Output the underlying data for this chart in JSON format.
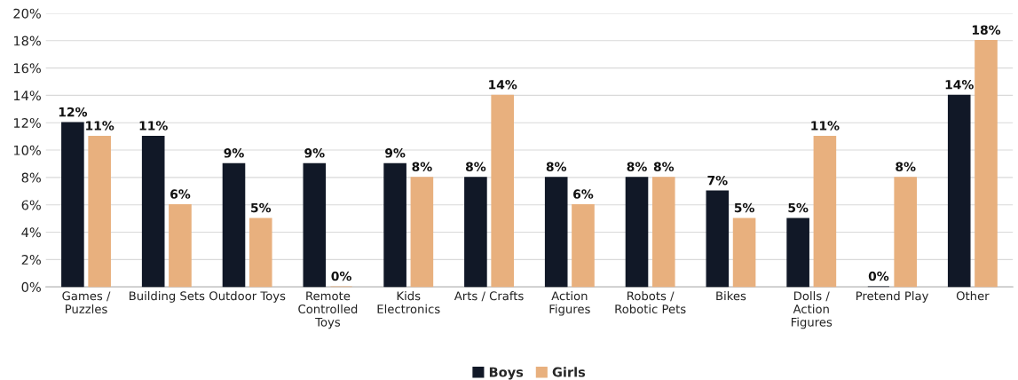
{
  "chart_data": {
    "type": "bar",
    "categories": [
      "Games / Puzzles",
      "Building Sets",
      "Outdoor Toys",
      "Remote Controlled Toys",
      "Kids Electronics",
      "Arts / Crafts",
      "Action Figures",
      "Robots / Robotic Pets",
      "Bikes",
      "Dolls / Action Figures",
      "Pretend Play",
      "Other"
    ],
    "series": [
      {
        "name": "Boys",
        "color": "#111827",
        "values": [
          12,
          11,
          9,
          9,
          9,
          8,
          8,
          8,
          7,
          5,
          0,
          14
        ],
        "value_labels": [
          "12%",
          "11%",
          "9%",
          "9%",
          "9%",
          "8%",
          "8%",
          "8%",
          "7%",
          "5%",
          "0%",
          "14%"
        ]
      },
      {
        "name": "Girls",
        "color": "#e8b07e",
        "values": [
          11,
          6,
          5,
          0,
          8,
          14,
          6,
          8,
          5,
          11,
          8,
          18
        ],
        "value_labels": [
          "11%",
          "6%",
          "5%",
          "0%",
          "8%",
          "14%",
          "6%",
          "8%",
          "5%",
          "11%",
          "8%",
          "18%"
        ]
      }
    ],
    "ylim": [
      0,
      20
    ],
    "yticks": [
      {
        "value": 0,
        "label": "0%"
      },
      {
        "value": 2,
        "label": "2%"
      },
      {
        "value": 4,
        "label": "4%"
      },
      {
        "value": 6,
        "label": "6%"
      },
      {
        "value": 8,
        "label": "8%"
      },
      {
        "value": 10,
        "label": "10%"
      },
      {
        "value": 12,
        "label": "12%"
      },
      {
        "value": 14,
        "label": "14%"
      },
      {
        "value": 16,
        "label": "16%"
      },
      {
        "value": 18,
        "label": "18%"
      },
      {
        "value": 20,
        "label": "20%"
      }
    ],
    "grid": "y",
    "legend": "bottom"
  }
}
